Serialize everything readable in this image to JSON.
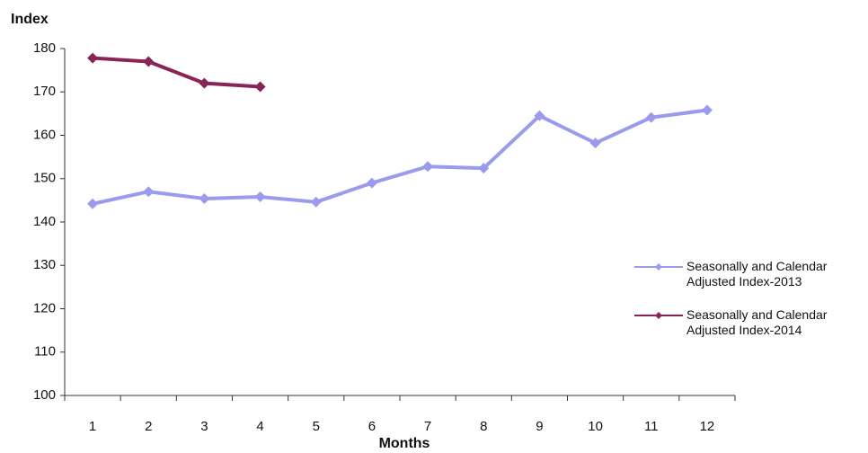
{
  "chart_data": {
    "type": "line",
    "y_axis_label": "Index",
    "x_axis_label": "Months",
    "categories": [
      "1",
      "2",
      "3",
      "4",
      "5",
      "6",
      "7",
      "8",
      "9",
      "10",
      "11",
      "12"
    ],
    "series": [
      {
        "name": "Seasonally and Calendar Adjusted Index-2013",
        "color": "#9b9bee",
        "values": [
          144.2,
          147,
          145.4,
          145.8,
          144.6,
          149,
          152.8,
          152.4,
          164.5,
          158.2,
          164.1,
          165.8
        ]
      },
      {
        "name": "Seasonally and Calendar Adjusted Index-2014",
        "color": "#8b2456",
        "values": [
          177.8,
          177,
          172,
          171.2,
          null,
          null,
          null,
          null,
          null,
          null,
          null,
          null
        ]
      }
    ],
    "ylim": [
      100,
      180
    ],
    "yticks": [
      100,
      110,
      120,
      130,
      140,
      150,
      160,
      170,
      180
    ],
    "grid": false,
    "legend": "right"
  }
}
